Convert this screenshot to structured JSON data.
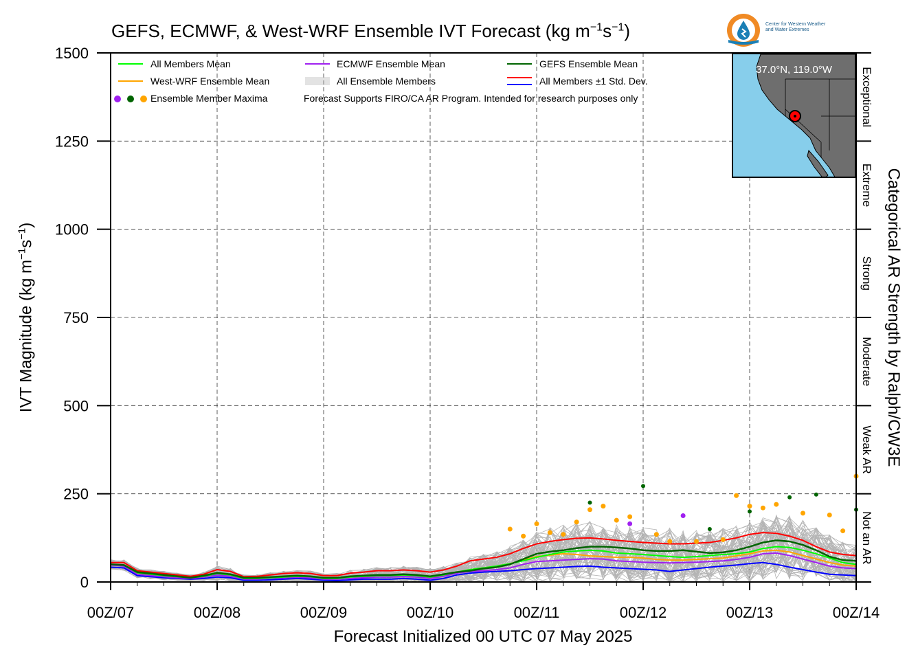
{
  "title_parts": {
    "main": "GEFS, ECMWF, & West-WRF Ensemble IVT Forecast (kg m",
    "sup1": "−1",
    "mid": "s",
    "sup2": "−1",
    "end": ")"
  },
  "logo": {
    "line1": "Center for Western Weather",
    "line2": "and Water Extremes",
    "icon": "water-drop-sun-logo"
  },
  "inset_map": {
    "coordinate_label": "37.0°N, 119.0°W",
    "ocean_color": "#87ceeb",
    "land_color": "#6e6e6e",
    "marker_color": "#ff0000"
  },
  "legend": {
    "all_members_mean": "All Members Mean",
    "ecmwf_mean": "ECMWF Ensemble Mean",
    "gefs_mean": "GEFS Ensemble Mean",
    "westwrf_mean": "West-WRF Ensemble Mean",
    "all_members": "All Ensemble Members",
    "std_dev": "All Members ±1 Std. Dev.",
    "maxima": "Ensemble Member Maxima",
    "note": "Forecast Supports FIRO/CA AR Program. Intended for research purposes only"
  },
  "ylabel_parts": {
    "main": "IVT Magnitude (kg m",
    "sup1": "−1",
    "mid": "s",
    "sup2": "−1",
    "end": ")"
  },
  "right_label": "Categorical AR Strength by Ralph/CW3E",
  "xlabel": "Forecast Initialized 00 UTC 07 May 2025",
  "colors": {
    "all_mean": "#00ff00",
    "ecmwf": "#a020f0",
    "gefs": "#006400",
    "westwrf": "#ffa500",
    "members": "#b4b4b4",
    "std_upper": "#ff0000",
    "std_lower": "#0000ff"
  },
  "chart_data": {
    "type": "line",
    "x_unit": "forecast hour from 00Z/07",
    "x_ticks": [
      0,
      24,
      48,
      72,
      96,
      120,
      144,
      168
    ],
    "x_tick_labels": [
      "00Z/07",
      "00Z/08",
      "00Z/09",
      "00Z/10",
      "00Z/11",
      "00Z/12",
      "00Z/13",
      "00Z/14"
    ],
    "xlim": [
      0,
      168
    ],
    "ylim": [
      0,
      1500
    ],
    "y_ticks": [
      0,
      250,
      500,
      750,
      1000,
      1250,
      1500
    ],
    "y_tick_labels": [
      "0",
      "250",
      "500",
      "750",
      "1000",
      "1250",
      "1500"
    ],
    "grid": true,
    "legend_position": "top-left",
    "categories": [
      {
        "label": "Not an AR",
        "from": 0,
        "to": 250
      },
      {
        "label": "Weak AR",
        "from": 250,
        "to": 500
      },
      {
        "label": "Moderate",
        "from": 500,
        "to": 750
      },
      {
        "label": "Strong",
        "from": 750,
        "to": 1000
      },
      {
        "label": "Extreme",
        "from": 1000,
        "to": 1250
      },
      {
        "label": "Exceptional",
        "from": 1250,
        "to": 1500
      }
    ],
    "x": [
      0,
      3,
      6,
      9,
      12,
      15,
      18,
      21,
      24,
      27,
      30,
      33,
      36,
      39,
      42,
      45,
      48,
      51,
      54,
      57,
      60,
      63,
      66,
      69,
      72,
      75,
      78,
      81,
      84,
      87,
      90,
      93,
      96,
      99,
      102,
      105,
      108,
      111,
      114,
      117,
      120,
      123,
      126,
      129,
      132,
      135,
      138,
      141,
      144,
      147,
      150,
      153,
      156,
      159,
      162,
      165,
      168
    ],
    "series": [
      {
        "name": "All Members Mean",
        "color_key": "all_mean",
        "values": [
          50,
          48,
          26,
          22,
          18,
          15,
          12,
          16,
          24,
          20,
          10,
          10,
          12,
          14,
          16,
          15,
          10,
          10,
          14,
          16,
          18,
          18,
          20,
          18,
          14,
          20,
          28,
          35,
          40,
          45,
          52,
          60,
          70,
          78,
          85,
          88,
          90,
          88,
          82,
          80,
          78,
          75,
          72,
          70,
          72,
          75,
          78,
          80,
          85,
          95,
          100,
          98,
          90,
          80,
          68,
          55,
          50
        ]
      },
      {
        "name": "ECMWF Ensemble Mean",
        "color_key": "ecmwf",
        "values": [
          48,
          45,
          22,
          18,
          15,
          12,
          10,
          14,
          20,
          16,
          8,
          8,
          10,
          12,
          14,
          12,
          8,
          8,
          10,
          12,
          14,
          14,
          15,
          14,
          10,
          16,
          25,
          30,
          32,
          35,
          40,
          50,
          58,
          60,
          62,
          64,
          66,
          65,
          60,
          58,
          56,
          55,
          54,
          55,
          56,
          58,
          60,
          64,
          70,
          80,
          82,
          75,
          65,
          55,
          45,
          40,
          38
        ]
      },
      {
        "name": "GEFS Ensemble Mean",
        "color_key": "gefs",
        "values": [
          50,
          48,
          28,
          24,
          20,
          16,
          12,
          18,
          26,
          22,
          12,
          12,
          14,
          16,
          18,
          16,
          12,
          12,
          16,
          18,
          20,
          20,
          22,
          20,
          16,
          22,
          28,
          32,
          38,
          42,
          50,
          65,
          80,
          86,
          90,
          96,
          100,
          100,
          98,
          95,
          90,
          88,
          88,
          90,
          86,
          82,
          84,
          90,
          100,
          112,
          118,
          115,
          105,
          90,
          72,
          62,
          60
        ]
      },
      {
        "name": "West-WRF Ensemble Mean",
        "color_key": "westwrf",
        "values": [
          50,
          48,
          26,
          22,
          18,
          15,
          12,
          16,
          24,
          20,
          10,
          10,
          12,
          14,
          16,
          15,
          10,
          10,
          14,
          16,
          18,
          18,
          20,
          18,
          14,
          20,
          28,
          35,
          40,
          45,
          52,
          62,
          72,
          76,
          80,
          78,
          74,
          72,
          70,
          70,
          68,
          64,
          62,
          62,
          64,
          66,
          68,
          74,
          80,
          88,
          90,
          85,
          75,
          65,
          55,
          48,
          45
        ]
      },
      {
        "name": "All Members +1 Std. Dev.",
        "color_key": "std_upper",
        "values": [
          55,
          55,
          32,
          28,
          24,
          20,
          16,
          22,
          35,
          30,
          15,
          16,
          20,
          24,
          26,
          24,
          18,
          18,
          25,
          28,
          32,
          32,
          34,
          32,
          28,
          34,
          45,
          60,
          65,
          70,
          80,
          95,
          108,
          115,
          120,
          124,
          125,
          122,
          118,
          115,
          112,
          110,
          108,
          108,
          110,
          112,
          118,
          125,
          135,
          140,
          138,
          130,
          118,
          100,
          85,
          78,
          75
        ]
      },
      {
        "name": "All Members -1 Std. Dev.",
        "color_key": "std_lower",
        "values": [
          42,
          40,
          18,
          15,
          12,
          10,
          8,
          10,
          14,
          12,
          5,
          5,
          6,
          8,
          10,
          8,
          5,
          4,
          6,
          8,
          8,
          8,
          10,
          8,
          5,
          10,
          20,
          25,
          28,
          30,
          32,
          35,
          38,
          40,
          42,
          44,
          45,
          42,
          40,
          38,
          36,
          34,
          30,
          34,
          38,
          42,
          45,
          48,
          52,
          55,
          50,
          42,
          35,
          28,
          22,
          20,
          18
        ]
      }
    ],
    "ensemble_maxima": [
      {
        "x": 90,
        "y": 150,
        "group": "westwrf"
      },
      {
        "x": 93,
        "y": 130,
        "group": "westwrf"
      },
      {
        "x": 96,
        "y": 165,
        "group": "westwrf"
      },
      {
        "x": 99,
        "y": 140,
        "group": "westwrf"
      },
      {
        "x": 102,
        "y": 135,
        "group": "westwrf"
      },
      {
        "x": 105,
        "y": 170,
        "group": "westwrf"
      },
      {
        "x": 108,
        "y": 205,
        "group": "westwrf"
      },
      {
        "x": 108,
        "y": 225,
        "group": "gefs"
      },
      {
        "x": 111,
        "y": 215,
        "group": "westwrf"
      },
      {
        "x": 114,
        "y": 175,
        "group": "westwrf"
      },
      {
        "x": 117,
        "y": 185,
        "group": "westwrf"
      },
      {
        "x": 117,
        "y": 165,
        "group": "ecmwf"
      },
      {
        "x": 120,
        "y": 272,
        "group": "gefs"
      },
      {
        "x": 123,
        "y": 135,
        "group": "westwrf"
      },
      {
        "x": 126,
        "y": 115,
        "group": "westwrf"
      },
      {
        "x": 129,
        "y": 188,
        "group": "ecmwf"
      },
      {
        "x": 132,
        "y": 115,
        "group": "westwrf"
      },
      {
        "x": 135,
        "y": 150,
        "group": "gefs"
      },
      {
        "x": 138,
        "y": 120,
        "group": "westwrf"
      },
      {
        "x": 141,
        "y": 245,
        "group": "westwrf"
      },
      {
        "x": 144,
        "y": 215,
        "group": "westwrf"
      },
      {
        "x": 144,
        "y": 200,
        "group": "gefs"
      },
      {
        "x": 147,
        "y": 210,
        "group": "westwrf"
      },
      {
        "x": 150,
        "y": 220,
        "group": "westwrf"
      },
      {
        "x": 153,
        "y": 240,
        "group": "gefs"
      },
      {
        "x": 156,
        "y": 195,
        "group": "westwrf"
      },
      {
        "x": 159,
        "y": 248,
        "group": "gefs"
      },
      {
        "x": 162,
        "y": 190,
        "group": "westwrf"
      },
      {
        "x": 165,
        "y": 145,
        "group": "westwrf"
      },
      {
        "x": 168,
        "y": 300,
        "group": "westwrf"
      },
      {
        "x": 168,
        "y": 205,
        "group": "gefs"
      }
    ]
  }
}
